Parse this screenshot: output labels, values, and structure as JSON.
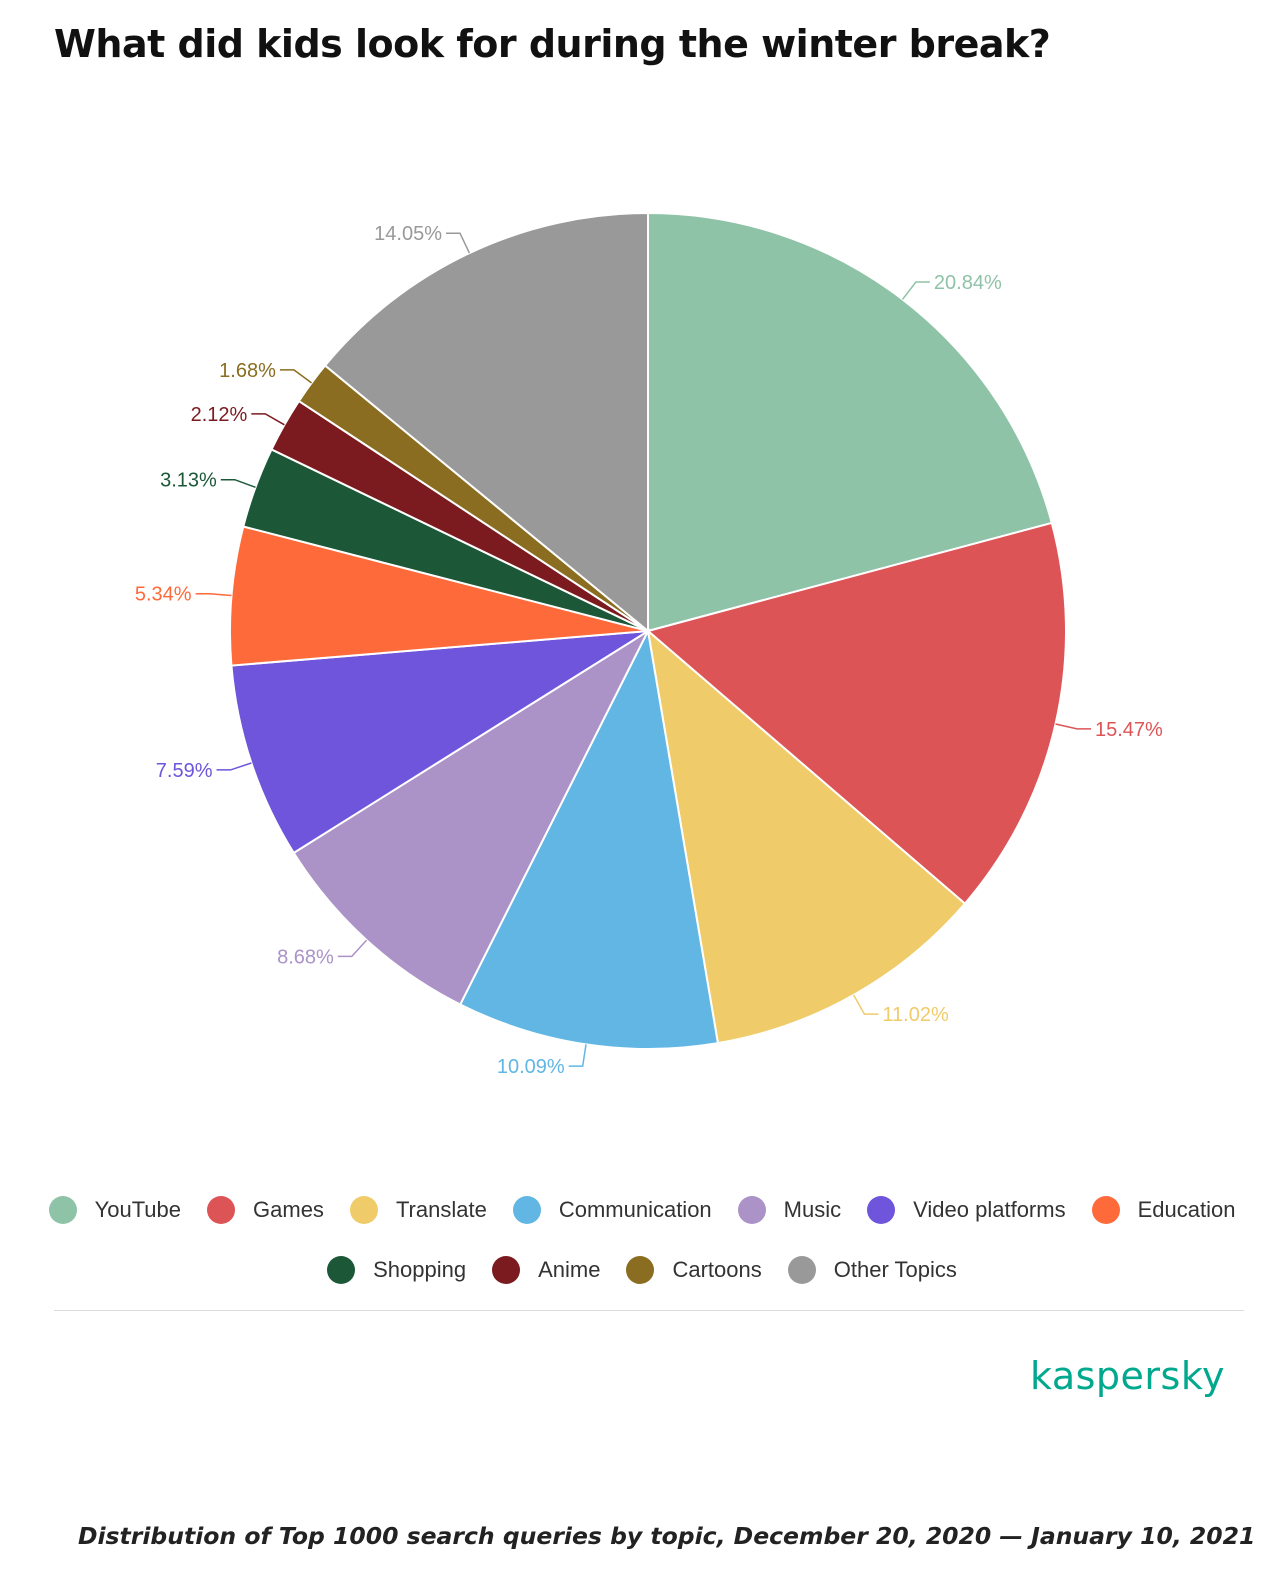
{
  "title": "What did kids look for during the winter break?",
  "chart_data": {
    "type": "pie",
    "title": "What did kids look for during the winter break?",
    "categories": [
      "YouTube",
      "Games",
      "Translate",
      "Communication",
      "Music",
      "Video platforms",
      "Education",
      "Shopping",
      "Anime",
      "Cartoons",
      "Other Topics"
    ],
    "values": [
      20.84,
      15.47,
      11.02,
      10.09,
      8.68,
      7.59,
      5.34,
      3.13,
      2.12,
      1.68,
      14.05
    ],
    "value_labels": [
      "20.84%",
      "15.47%",
      "11.02%",
      "10.09%",
      "8.68%",
      "7.59%",
      "5.34%",
      "3.13%",
      "2.12%",
      "1.68%",
      "14.05%"
    ],
    "colors": [
      "#8fc3a7",
      "#dd5457",
      "#efcb6a",
      "#61b6e4",
      "#ab92c7",
      "#6e55dc",
      "#fe6a3a",
      "#1c5838",
      "#7b1a1f",
      "#8a6d20",
      "#999999"
    ],
    "start_angle": "12 o'clock",
    "direction": "clockwise",
    "legend_placement": "bottom"
  },
  "legend": {
    "row1": [
      "YouTube",
      "Games",
      "Translate",
      "Communication",
      "Music",
      "Video platforms",
      "Education"
    ],
    "row2": [
      "Shopping",
      "Anime",
      "Cartoons",
      "Other Topics"
    ]
  },
  "brand": "kaspersky",
  "caption": "Distribution of Top 1000 search queries by topic, December 20, 2020 — January 10, 2021"
}
